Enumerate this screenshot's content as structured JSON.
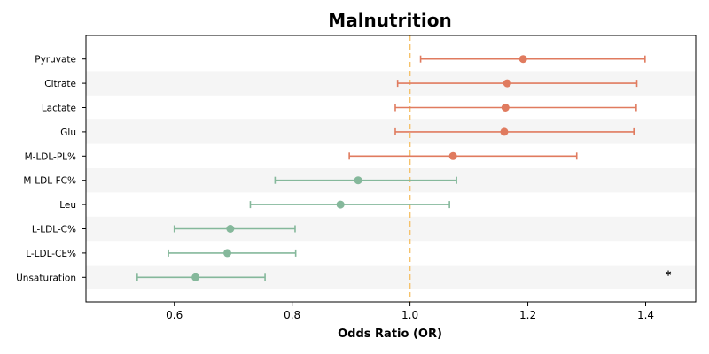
{
  "chart_data": {
    "type": "scatter",
    "subtype": "forest-plot",
    "title": "Malnutrition",
    "xlabel": "Odds Ratio (OR)",
    "ylabel": "",
    "xlim": [
      0.45,
      1.485
    ],
    "xticks": [
      "0.6",
      "0.8",
      "1.0",
      "1.2",
      "1.4"
    ],
    "reference_line": 1.0,
    "categories": [
      "Pyruvate",
      "Citrate",
      "Lactate",
      "Glu",
      "M-LDL-PL%",
      "M-LDL-FC%",
      "Leu",
      "L-LDL-C%",
      "L-LDL-CE%",
      "Unsaturation"
    ],
    "or": [
      1.192,
      1.165,
      1.162,
      1.16,
      1.073,
      0.912,
      0.882,
      0.695,
      0.69,
      0.636
    ],
    "ci_low": [
      1.018,
      0.979,
      0.975,
      0.975,
      0.897,
      0.771,
      0.729,
      0.6,
      0.59,
      0.537
    ],
    "ci_high": [
      1.399,
      1.385,
      1.384,
      1.38,
      1.283,
      1.079,
      1.067,
      0.805,
      0.806,
      0.754
    ],
    "annotations": [
      {
        "category": "Unsaturation",
        "text": "*"
      }
    ],
    "colors": {
      "positive": "#e07b5f",
      "negative": "#85b89b",
      "reference": "#f5c26b",
      "band": "#f5f5f5"
    },
    "grid": false,
    "banded_rows": true
  }
}
